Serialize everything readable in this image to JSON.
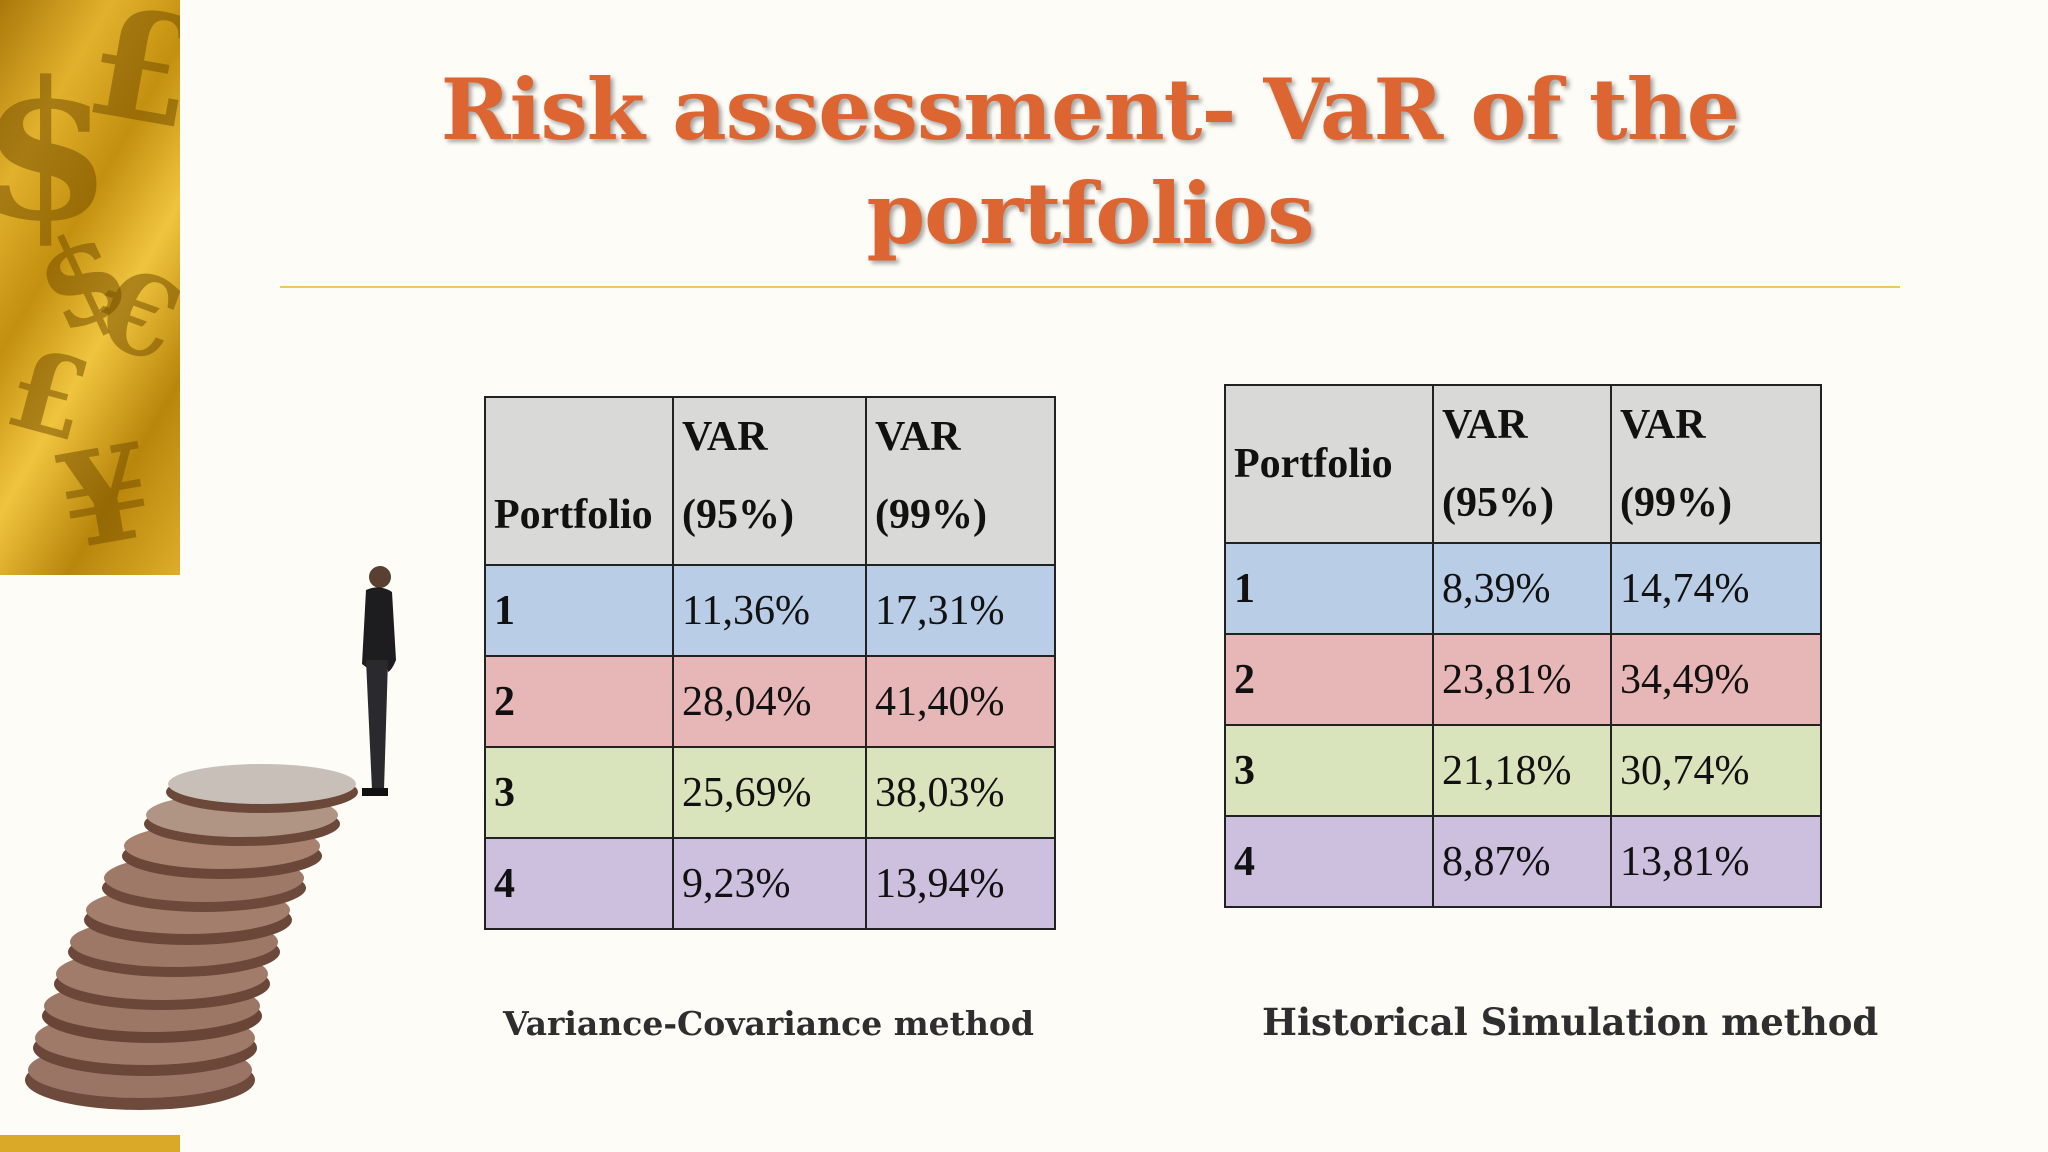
{
  "slide": {
    "title": "Risk assessment- VaR of the portfolios"
  },
  "decorations": {
    "gold_strip_glyphs": [
      "$",
      "$",
      "£",
      "£",
      "¥",
      "€"
    ],
    "figure": "man-on-coin-stack"
  },
  "variance_covariance": {
    "headers": {
      "portfolio": "Portfolio",
      "var95_line1": "VAR",
      "var95_line2": "(95%)",
      "var99_line1": "VAR",
      "var99_line2": "(99%)"
    },
    "rows": [
      {
        "portfolio": "1",
        "var95": "11,36%",
        "var99": "17,31%"
      },
      {
        "portfolio": "2",
        "var95": "28,04%",
        "var99": "41,40%"
      },
      {
        "portfolio": "3",
        "var95": "25,69%",
        "var99": "38,03%"
      },
      {
        "portfolio": "4",
        "var95": "9,23%",
        "var99": "13,94%"
      }
    ],
    "caption": "Variance-Covariance method"
  },
  "historical_simulation": {
    "headers": {
      "portfolio": "Portfolio",
      "var95_line1": "VAR",
      "var95_line2": "(95%)",
      "var99_line1": "VAR",
      "var99_line2": "(99%)"
    },
    "rows": [
      {
        "portfolio": "1",
        "var95": "8,39%",
        "var99": "14,74%"
      },
      {
        "portfolio": "2",
        "var95": "23,81%",
        "var99": "34,49%"
      },
      {
        "portfolio": "3",
        "var95": "21,18%",
        "var99": "30,74%"
      },
      {
        "portfolio": "4",
        "var95": "8,87%",
        "var99": "13,81%"
      }
    ],
    "caption": "Historical Simulation method"
  },
  "colors": {
    "title": "#dc6532",
    "header_bg": "#d9d9d7",
    "row_1": "#b9cde6",
    "row_2": "#e6b7b6",
    "row_3": "#d9e4bc",
    "row_4": "#cdc0de",
    "divider": "#f0c85a",
    "gold": "#e2b12c"
  }
}
